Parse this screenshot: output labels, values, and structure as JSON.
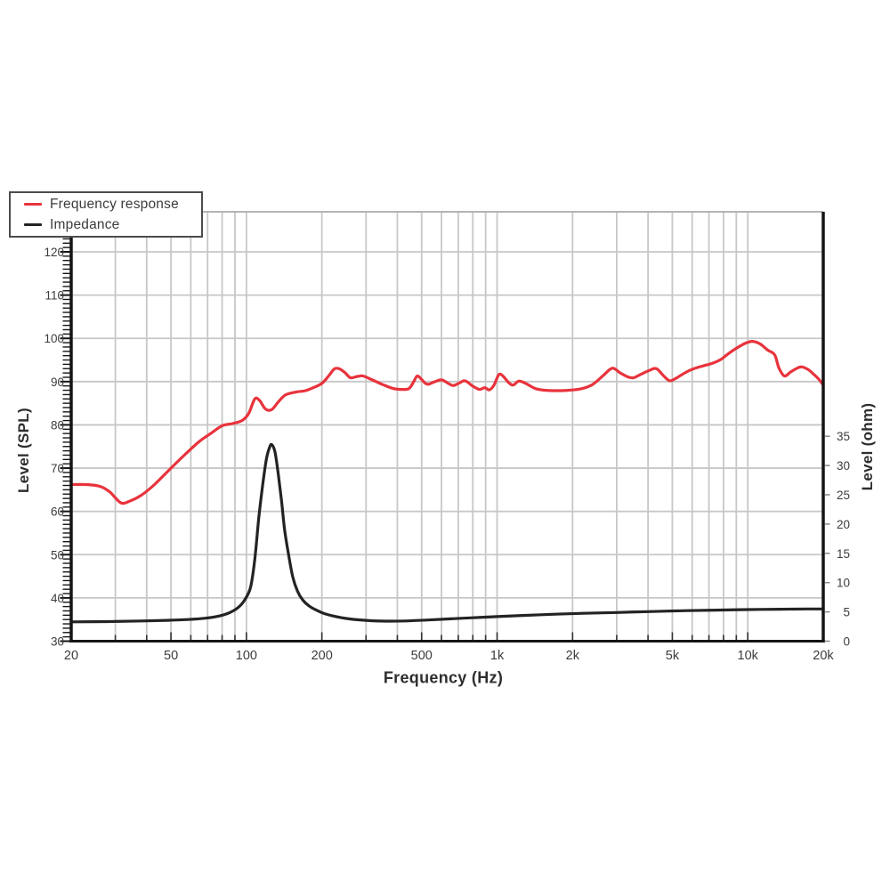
{
  "legend": {
    "items": [
      {
        "label": "Frequency response",
        "color": "#e8333c"
      },
      {
        "label": "Impedance",
        "color": "#232323"
      }
    ]
  },
  "chart_data": {
    "type": "line",
    "xlabel": "Frequency (Hz)",
    "ylabel_left": "Level (SPL)",
    "ylabel_right": "Level (ohm)",
    "x_scale": "log",
    "x_range": [
      20,
      20000
    ],
    "y_left_range": [
      30,
      120
    ],
    "y_right_range": [
      0,
      35
    ],
    "grid": true,
    "legend_position": "top-left",
    "x_major_ticks": [
      {
        "v": 20,
        "label": "20"
      },
      {
        "v": 50,
        "label": "50"
      },
      {
        "v": 100,
        "label": "100"
      },
      {
        "v": 200,
        "label": "200"
      },
      {
        "v": 500,
        "label": "500"
      },
      {
        "v": 1000,
        "label": "1k"
      },
      {
        "v": 2000,
        "label": "2k"
      },
      {
        "v": 5000,
        "label": "5k"
      },
      {
        "v": 10000,
        "label": "10k"
      },
      {
        "v": 20000,
        "label": "20k"
      }
    ],
    "grid_frequencies": [
      30,
      40,
      50,
      60,
      70,
      80,
      90,
      100,
      200,
      300,
      400,
      500,
      600,
      700,
      800,
      900,
      1000,
      2000,
      3000,
      4000,
      5000,
      6000,
      7000,
      8000,
      9000,
      10000
    ],
    "y_left_ticks": [
      {
        "v": 30,
        "label": "30"
      },
      {
        "v": 40,
        "label": "40"
      },
      {
        "v": 50,
        "label": "50"
      },
      {
        "v": 60,
        "label": "60"
      },
      {
        "v": 70,
        "label": "70"
      },
      {
        "v": 80,
        "label": "80"
      },
      {
        "v": 90,
        "label": "90"
      },
      {
        "v": 100,
        "label": "100"
      },
      {
        "v": 110,
        "label": "110"
      },
      {
        "v": 120,
        "label": "120"
      }
    ],
    "grid_levels": [
      40,
      50,
      60,
      70,
      80,
      90,
      100,
      110,
      120
    ],
    "y_right_ticks": [
      {
        "v": 0,
        "label": "0"
      },
      {
        "v": 5,
        "label": "5"
      },
      {
        "v": 10,
        "label": "10"
      },
      {
        "v": 15,
        "label": "15"
      },
      {
        "v": 20,
        "label": "20"
      },
      {
        "v": 25,
        "label": "25"
      },
      {
        "v": 30,
        "label": "30"
      },
      {
        "v": 35,
        "label": "35"
      }
    ],
    "series": [
      {
        "name": "Frequency response",
        "axis": "left",
        "unit": "dB SPL",
        "color": "#e8333c",
        "points": [
          [
            20,
            66.2
          ],
          [
            23,
            66.2
          ],
          [
            26,
            65.8
          ],
          [
            28.5,
            64.5
          ],
          [
            31.5,
            62.0
          ],
          [
            34,
            62.3
          ],
          [
            38,
            63.7
          ],
          [
            43,
            66.2
          ],
          [
            50,
            70.0
          ],
          [
            57,
            73.2
          ],
          [
            65,
            76.2
          ],
          [
            72,
            78.0
          ],
          [
            80,
            79.8
          ],
          [
            88,
            80.3
          ],
          [
            96,
            81.0
          ],
          [
            102,
            82.6
          ],
          [
            108,
            86.0
          ],
          [
            113,
            85.6
          ],
          [
            119,
            83.7
          ],
          [
            126,
            83.5
          ],
          [
            134,
            85.3
          ],
          [
            143,
            86.9
          ],
          [
            158,
            87.6
          ],
          [
            172,
            87.9
          ],
          [
            185,
            88.6
          ],
          [
            200,
            89.6
          ],
          [
            212,
            91.2
          ],
          [
            224,
            92.9
          ],
          [
            234,
            93.0
          ],
          [
            247,
            92.1
          ],
          [
            260,
            90.9
          ],
          [
            277,
            91.2
          ],
          [
            292,
            91.3
          ],
          [
            315,
            90.5
          ],
          [
            350,
            89.3
          ],
          [
            385,
            88.4
          ],
          [
            415,
            88.2
          ],
          [
            445,
            88.4
          ],
          [
            465,
            90.0
          ],
          [
            480,
            91.3
          ],
          [
            498,
            90.6
          ],
          [
            515,
            89.7
          ],
          [
            532,
            89.4
          ],
          [
            560,
            89.9
          ],
          [
            600,
            90.4
          ],
          [
            638,
            89.6
          ],
          [
            668,
            89.1
          ],
          [
            708,
            89.7
          ],
          [
            745,
            90.2
          ],
          [
            798,
            89.0
          ],
          [
            850,
            88.2
          ],
          [
            893,
            88.6
          ],
          [
            930,
            88.1
          ],
          [
            972,
            89.2
          ],
          [
            1015,
            91.6
          ],
          [
            1055,
            91.3
          ],
          [
            1115,
            89.7
          ],
          [
            1160,
            89.2
          ],
          [
            1220,
            90.1
          ],
          [
            1300,
            89.6
          ],
          [
            1420,
            88.4
          ],
          [
            1560,
            88.0
          ],
          [
            1720,
            87.9
          ],
          [
            1920,
            88.0
          ],
          [
            2150,
            88.3
          ],
          [
            2400,
            89.3
          ],
          [
            2650,
            91.4
          ],
          [
            2880,
            93.1
          ],
          [
            3100,
            92.0
          ],
          [
            3320,
            91.1
          ],
          [
            3500,
            90.9
          ],
          [
            3720,
            91.6
          ],
          [
            4050,
            92.6
          ],
          [
            4320,
            93.0
          ],
          [
            4620,
            91.3
          ],
          [
            4880,
            90.2
          ],
          [
            5150,
            90.7
          ],
          [
            5600,
            92.0
          ],
          [
            6100,
            93.0
          ],
          [
            6700,
            93.7
          ],
          [
            7200,
            94.2
          ],
          [
            7800,
            95.1
          ],
          [
            8300,
            96.3
          ],
          [
            9000,
            97.7
          ],
          [
            9800,
            98.9
          ],
          [
            10450,
            99.3
          ],
          [
            11200,
            98.7
          ],
          [
            12000,
            97.3
          ],
          [
            12800,
            96.2
          ],
          [
            13300,
            93.2
          ],
          [
            14000,
            91.3
          ],
          [
            14800,
            92.2
          ],
          [
            15600,
            93.0
          ],
          [
            16400,
            93.4
          ],
          [
            17400,
            92.8
          ],
          [
            18400,
            91.6
          ],
          [
            19300,
            90.4
          ],
          [
            20000,
            89.2
          ]
        ]
      },
      {
        "name": "Impedance",
        "axis": "right",
        "unit": "ohm",
        "color": "#232323",
        "points": [
          [
            20,
            3.3
          ],
          [
            28,
            3.35
          ],
          [
            38,
            3.45
          ],
          [
            48,
            3.55
          ],
          [
            58,
            3.7
          ],
          [
            68,
            3.9
          ],
          [
            78,
            4.3
          ],
          [
            86,
            4.9
          ],
          [
            93,
            5.8
          ],
          [
            99,
            7.2
          ],
          [
            104,
            9.3
          ],
          [
            108,
            14.0
          ],
          [
            112,
            21.0
          ],
          [
            116,
            26.5
          ],
          [
            120,
            31.0
          ],
          [
            123,
            32.8
          ],
          [
            126,
            33.6
          ],
          [
            130,
            32.3
          ],
          [
            134,
            28.5
          ],
          [
            138,
            24.0
          ],
          [
            142,
            19.0
          ],
          [
            147,
            15.0
          ],
          [
            153,
            11.0
          ],
          [
            160,
            8.5
          ],
          [
            168,
            7.0
          ],
          [
            178,
            6.0
          ],
          [
            190,
            5.3
          ],
          [
            205,
            4.7
          ],
          [
            228,
            4.2
          ],
          [
            258,
            3.8
          ],
          [
            300,
            3.55
          ],
          [
            360,
            3.42
          ],
          [
            430,
            3.45
          ],
          [
            520,
            3.6
          ],
          [
            640,
            3.8
          ],
          [
            800,
            4.0
          ],
          [
            1000,
            4.2
          ],
          [
            1300,
            4.4
          ],
          [
            1700,
            4.6
          ],
          [
            2200,
            4.75
          ],
          [
            3000,
            4.9
          ],
          [
            4000,
            5.05
          ],
          [
            5500,
            5.2
          ],
          [
            7500,
            5.3
          ],
          [
            10000,
            5.4
          ],
          [
            13500,
            5.45
          ],
          [
            17000,
            5.5
          ],
          [
            20000,
            5.5
          ]
        ]
      }
    ],
    "colors": {
      "grid": "#c7c7c7",
      "top_border": "#b4b4b4",
      "spine": "#151515",
      "tick": "#333333",
      "label": "#3c3c3c"
    }
  }
}
